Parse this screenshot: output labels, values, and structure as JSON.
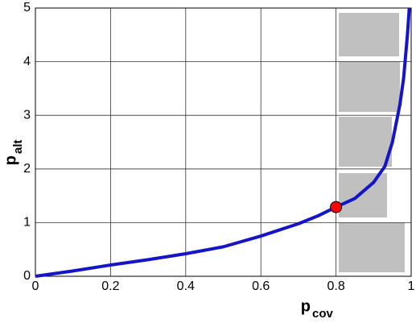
{
  "chart_data": {
    "type": "line",
    "xlabel": "p",
    "xlabel_sub": "cov",
    "ylabel": "p",
    "ylabel_sub": "alt",
    "x": [
      0,
      0.1,
      0.2,
      0.3,
      0.4,
      0.5,
      0.6,
      0.7,
      0.75,
      0.8,
      0.85,
      0.9,
      0.93,
      0.95,
      0.97,
      0.98,
      0.99,
      0.995
    ],
    "series": [
      {
        "color": "#1414c8",
        "values": [
          0,
          0.1,
          0.21,
          0.31,
          0.42,
          0.55,
          0.75,
          0.98,
          1.12,
          1.29,
          1.45,
          1.75,
          2.05,
          2.5,
          3.2,
          3.7,
          4.5,
          5.0
        ]
      }
    ],
    "highlight": {
      "x": 0.8,
      "y": 1.29,
      "color": "#ff0000"
    },
    "xlim": [
      0,
      1
    ],
    "xticks": [
      0,
      0.2,
      0.4,
      0.6,
      0.8,
      1
    ],
    "ylim": [
      0,
      5
    ],
    "yticks": [
      0,
      1,
      2,
      3,
      4,
      5
    ],
    "grid": true
  }
}
